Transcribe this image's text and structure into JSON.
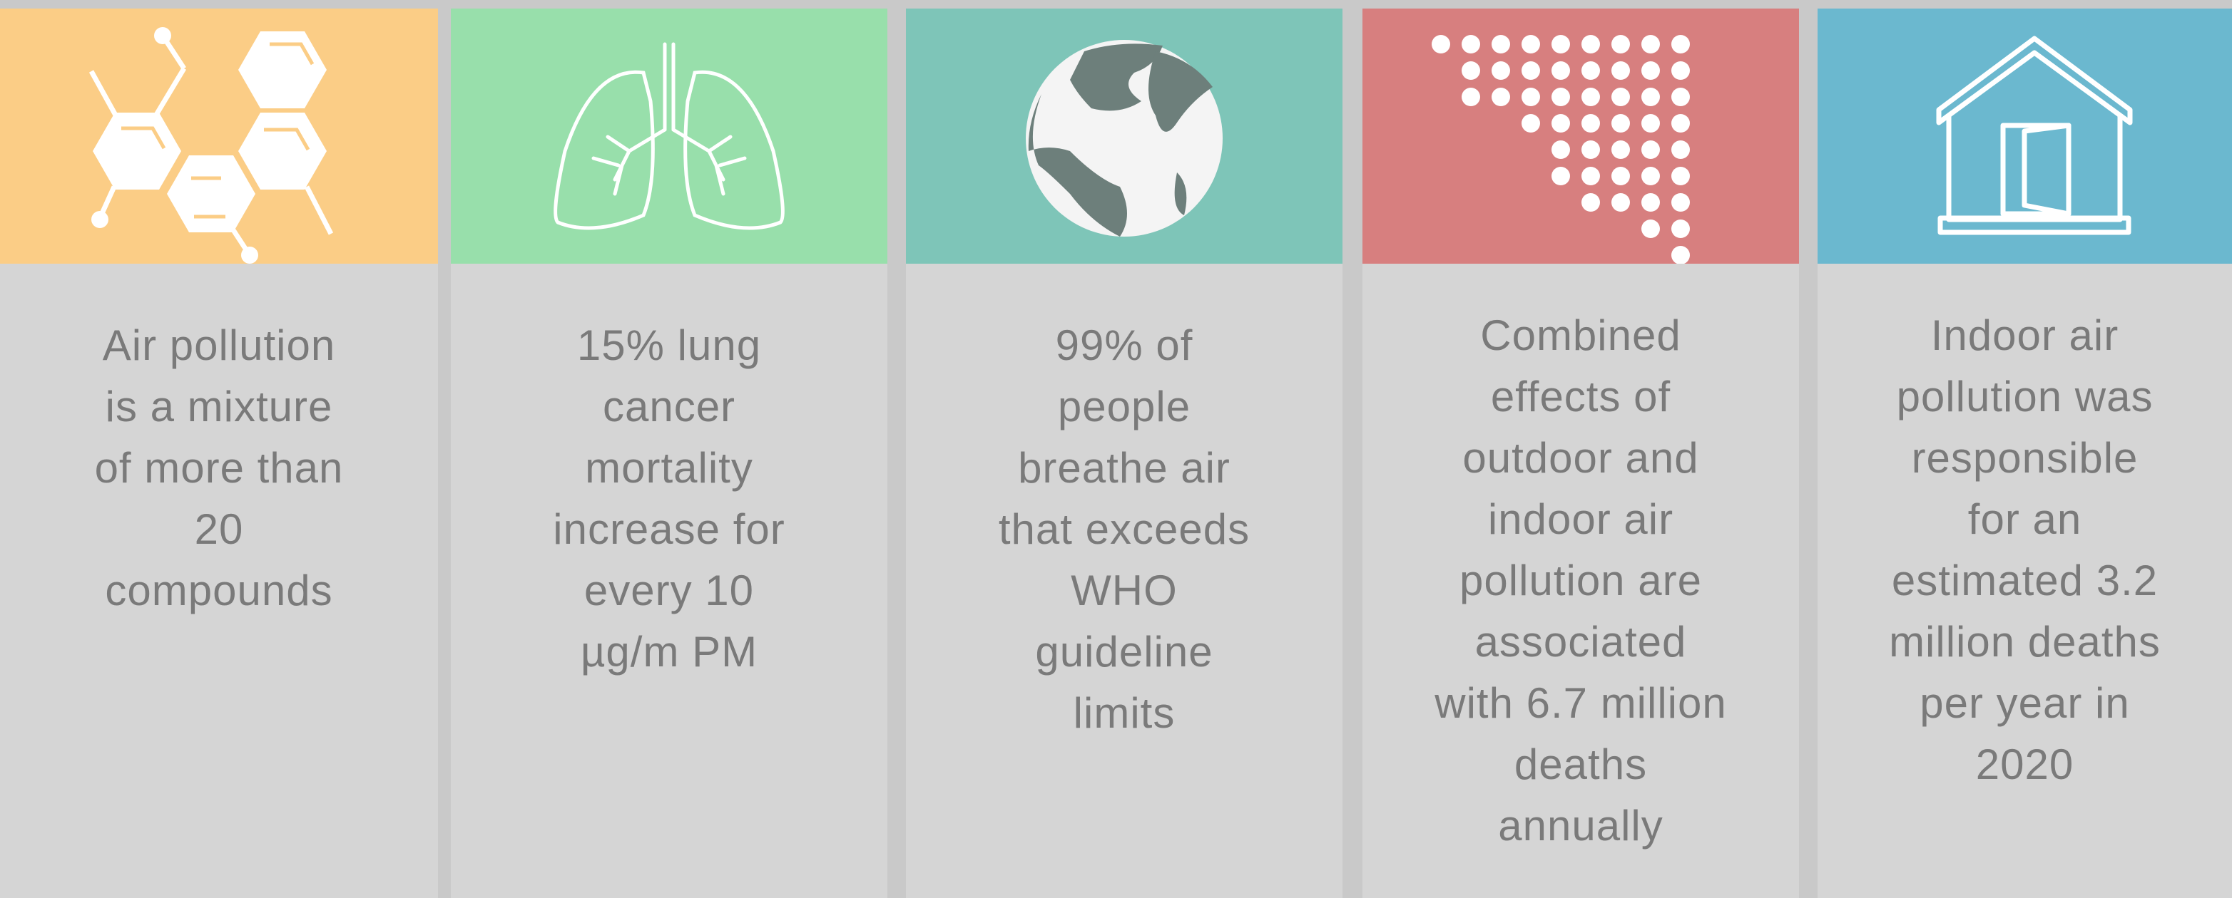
{
  "cards": [
    {
      "lines": [
        "Air pollution",
        "is a mixture",
        "of more than",
        "20",
        "compounds"
      ]
    },
    {
      "lines": [
        "15% lung",
        "cancer",
        "mortality",
        "increase for",
        "every 10",
        "µg/m  PM"
      ]
    },
    {
      "lines": [
        "99% of",
        "people",
        "breathe air",
        "that exceeds",
        "WHO",
        "guideline",
        "limits"
      ]
    },
    {
      "lines": [
        "Combined",
        "effects of",
        "outdoor and",
        "indoor air",
        "pollution are",
        "associated",
        "with 6.7 million",
        "deaths",
        "annually"
      ]
    },
    {
      "lines": [
        "Indoor air",
        "pollution was",
        "responsible",
        "for an",
        "estimated 3.2",
        "million deaths",
        "per year in",
        "2020"
      ]
    }
  ]
}
